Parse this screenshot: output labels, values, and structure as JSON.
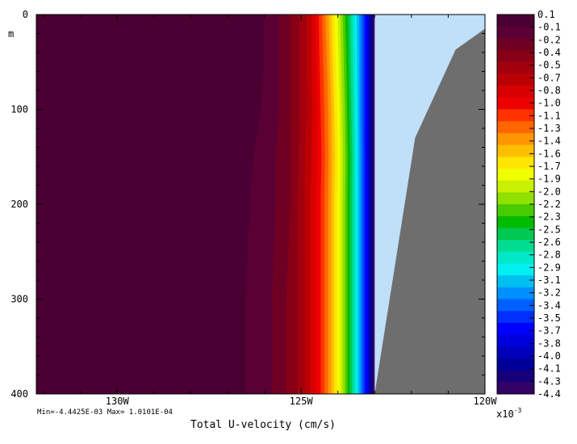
{
  "chart_data": {
    "type": "heatmap",
    "title": "",
    "xlabel": "Total U-velocity (cm/s)",
    "ylabel": "m",
    "x_axis": {
      "ticks": [
        -130,
        -125,
        -120
      ],
      "tick_labels": [
        "130W",
        "125W",
        "120W"
      ],
      "range": [
        -132.2,
        -120
      ]
    },
    "y_axis": {
      "ticks": [
        0,
        100,
        200,
        300,
        400
      ],
      "tick_labels": [
        "0",
        "100",
        "200",
        "300",
        "400"
      ],
      "range": [
        0,
        400
      ],
      "inverted": true
    },
    "stats_text": "Min=-4.4425E-03  Max= 1.0101E-04",
    "colorbar": {
      "label_text": "x10",
      "exponent": "-3",
      "tick_labels": [
        "0.1",
        "-0.1",
        "-0.2",
        "-0.4",
        "-0.5",
        "-0.7",
        "-0.8",
        "-1.0",
        "-1.1",
        "-1.3",
        "-1.4",
        "-1.6",
        "-1.7",
        "-1.9",
        "-2.0",
        "-2.2",
        "-2.3",
        "-2.5",
        "-2.6",
        "-2.8",
        "-2.9",
        "-3.1",
        "-3.2",
        "-3.4",
        "-3.5",
        "-3.7",
        "-3.8",
        "-4.0",
        "-4.1",
        "-4.3",
        "-4.4"
      ],
      "colors": [
        "#4a0033",
        "#5a0035",
        "#6e0024",
        "#880016",
        "#a3000e",
        "#bb0004",
        "#d80000",
        "#ee0000",
        "#ff3300",
        "#ff6600",
        "#ff9500",
        "#ffbf00",
        "#ffe600",
        "#f1ff00",
        "#c8f000",
        "#90e000",
        "#48cc00",
        "#00bb00",
        "#00c850",
        "#00dd90",
        "#00e8c8",
        "#00f0f0",
        "#00c0f0",
        "#0090ff",
        "#0060ff",
        "#0030ff",
        "#0000ff",
        "#0000dd",
        "#0000bb",
        "#000099",
        "#15007a",
        "#330066"
      ]
    },
    "field": {
      "value_range": [
        -0.0044425,
        0.00010101
      ],
      "depths": [
        0,
        50,
        100,
        150,
        200,
        300,
        400
      ],
      "contour_longitudes": [
        [
          -126.0,
          -126.0,
          -126.1,
          -126.3,
          -126.4,
          -126.5,
          -126.5
        ],
        [
          -125.6,
          -125.6,
          -125.6,
          -125.7,
          -125.7,
          -125.8,
          -125.8
        ],
        [
          -125.3,
          -125.3,
          -125.3,
          -125.3,
          -125.3,
          -125.4,
          -125.4
        ],
        [
          -125.05,
          -125.05,
          -125.05,
          -125.07,
          -125.1,
          -125.1,
          -125.1
        ],
        [
          -124.85,
          -124.85,
          -124.85,
          -124.9,
          -124.9,
          -124.9,
          -124.9
        ],
        [
          -124.72,
          -124.72,
          -124.7,
          -124.72,
          -124.75,
          -124.75,
          -124.75
        ],
        [
          -124.62,
          -124.6,
          -124.57,
          -124.57,
          -124.6,
          -124.6,
          -124.6
        ],
        [
          -124.52,
          -124.5,
          -124.47,
          -124.45,
          -124.47,
          -124.47,
          -124.47
        ],
        [
          -124.43,
          -124.4,
          -124.37,
          -124.35,
          -124.37,
          -124.37,
          -124.37
        ],
        [
          -124.34,
          -124.3,
          -124.27,
          -124.25,
          -124.27,
          -124.27,
          -124.27
        ],
        [
          -124.25,
          -124.22,
          -124.18,
          -124.17,
          -124.18,
          -124.18,
          -124.18
        ],
        [
          -124.17,
          -124.14,
          -124.1,
          -124.08,
          -124.1,
          -124.1,
          -124.1
        ],
        [
          -124.09,
          -124.06,
          -124.02,
          -124.0,
          -124.02,
          -124.02,
          -124.02
        ],
        [
          -124.01,
          -123.98,
          -123.95,
          -123.93,
          -123.94,
          -123.94,
          -123.94
        ],
        [
          -123.94,
          -123.91,
          -123.88,
          -123.86,
          -123.87,
          -123.87,
          -123.87
        ],
        [
          -123.87,
          -123.84,
          -123.81,
          -123.79,
          -123.8,
          -123.8,
          -123.8
        ],
        [
          -123.8,
          -123.77,
          -123.75,
          -123.73,
          -123.74,
          -123.74,
          -123.74
        ],
        [
          -123.73,
          -123.71,
          -123.69,
          -123.67,
          -123.68,
          -123.68,
          -123.68
        ],
        [
          -123.67,
          -123.65,
          -123.63,
          -123.61,
          -123.62,
          -123.62,
          -123.62
        ],
        [
          -123.61,
          -123.59,
          -123.57,
          -123.56,
          -123.56,
          -123.56,
          -123.56
        ],
        [
          -123.55,
          -123.53,
          -123.52,
          -123.51,
          -123.51,
          -123.51,
          -123.51
        ],
        [
          -123.49,
          -123.48,
          -123.47,
          -123.46,
          -123.46,
          -123.46,
          -123.46
        ],
        [
          -123.43,
          -123.42,
          -123.42,
          -123.41,
          -123.41,
          -123.41,
          -123.41
        ],
        [
          -123.37,
          -123.37,
          -123.37,
          -123.36,
          -123.36,
          -123.36,
          -123.36
        ],
        [
          -123.31,
          -123.31,
          -123.31,
          -123.31,
          -123.31,
          -123.31,
          -123.31
        ],
        [
          -123.26,
          -123.26,
          -123.26,
          -123.26,
          -123.26,
          -123.26,
          -123.26
        ],
        [
          -123.21,
          -123.21,
          -123.21,
          -123.21,
          -123.21,
          -123.21,
          -123.21
        ],
        [
          -123.17,
          -123.17,
          -123.17,
          -123.17,
          -123.17,
          -123.17,
          -123.17
        ],
        [
          -123.13,
          -123.13,
          -123.13,
          -123.13,
          -123.13,
          -123.13,
          -123.13
        ],
        [
          -123.09,
          -123.09,
          -123.09,
          -123.09,
          -123.09,
          -123.09,
          -123.09
        ],
        [
          -123.05,
          -123.05,
          -123.05,
          -123.05,
          -123.05,
          -123.05,
          -123.05
        ]
      ]
    },
    "undefined_region": {
      "color": "#c0dff8",
      "west_edge_lon": -123.0,
      "depth_range": [
        0,
        400
      ]
    },
    "land_mask": {
      "color": "#6e6e6e",
      "boundary": [
        {
          "lon": -120.0,
          "depth": 15
        },
        {
          "lon": -120.8,
          "depth": 37
        },
        {
          "lon": -121.9,
          "depth": 130
        },
        {
          "lon": -123.0,
          "depth": 400
        }
      ]
    }
  }
}
